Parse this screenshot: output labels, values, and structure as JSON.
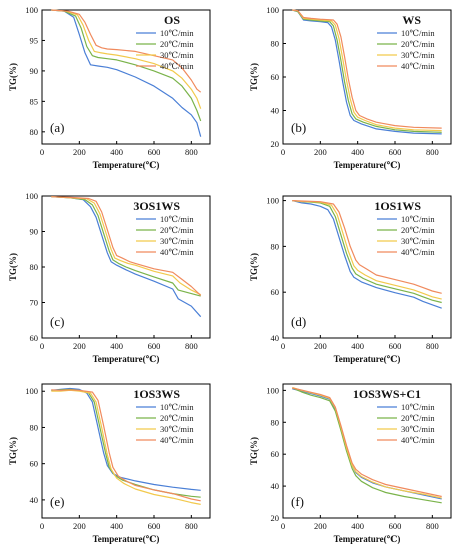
{
  "colors": {
    "10": "#4a7fd6",
    "20": "#7ab34a",
    "30": "#f2c94c",
    "40": "#f08a5d"
  },
  "chart_data": [
    {
      "type": "line",
      "panel": "(a)",
      "title": "OS",
      "xlabel": "Temperature(℃)",
      "ylabel": "TG(%)",
      "xlim": [
        0,
        900
      ],
      "ylim": [
        78,
        100
      ],
      "xticks": [
        0,
        200,
        400,
        600,
        800
      ],
      "yticks": [
        80,
        85,
        90,
        95,
        100
      ],
      "legend_position": "top-right",
      "series": [
        {
          "name": "10℃/min",
          "color_key": "10",
          "x": [
            50,
            120,
            170,
            200,
            230,
            260,
            300,
            350,
            400,
            500,
            600,
            700,
            750,
            800,
            830,
            850
          ],
          "y": [
            100,
            99.8,
            98.8,
            96,
            93,
            91,
            90.8,
            90.6,
            90.2,
            89,
            87.5,
            85.5,
            84,
            82.8,
            81.5,
            79.2
          ]
        },
        {
          "name": "20℃/min",
          "color_key": "20",
          "x": [
            50,
            120,
            180,
            210,
            240,
            270,
            300,
            350,
            400,
            500,
            600,
            700,
            750,
            800,
            830,
            850
          ],
          "y": [
            100,
            99.8,
            99,
            97,
            94,
            92.5,
            92.2,
            92,
            91.8,
            91,
            90,
            88.8,
            87.5,
            85.5,
            83.5,
            81.8
          ]
        },
        {
          "name": "30℃/min",
          "color_key": "30",
          "x": [
            50,
            130,
            190,
            220,
            250,
            280,
            310,
            350,
            400,
            500,
            600,
            700,
            750,
            800,
            830,
            850
          ],
          "y": [
            100,
            99.8,
            99.2,
            97.5,
            95,
            93.2,
            93,
            92.8,
            92.6,
            92,
            91.2,
            90,
            88.8,
            87,
            85.5,
            83.8
          ]
        },
        {
          "name": "40℃/min",
          "color_key": "40",
          "x": [
            50,
            140,
            200,
            230,
            260,
            290,
            320,
            350,
            400,
            500,
            600,
            700,
            750,
            800,
            830,
            850
          ],
          "y": [
            100,
            99.8,
            99.3,
            98,
            96,
            94.2,
            93.8,
            93.6,
            93.5,
            93.2,
            92.5,
            91.8,
            90.5,
            88.5,
            87,
            86.5
          ]
        }
      ]
    },
    {
      "type": "line",
      "panel": "(b)",
      "title": "WS",
      "xlabel": "Temperature(℃)",
      "ylabel": "TG(%)",
      "xlim": [
        0,
        900
      ],
      "ylim": [
        20,
        100
      ],
      "xticks": [
        0,
        200,
        400,
        600,
        800
      ],
      "yticks": [
        20,
        40,
        60,
        80,
        100
      ],
      "legend_position": "top-right",
      "series": [
        {
          "name": "10℃/min",
          "color_key": "10",
          "x": [
            50,
            80,
            110,
            150,
            200,
            240,
            260,
            280,
            300,
            320,
            340,
            360,
            380,
            420,
            500,
            600,
            700,
            850
          ],
          "y": [
            100,
            99,
            94,
            93.5,
            93,
            92.5,
            90,
            82,
            70,
            57,
            45,
            37,
            34,
            32,
            29,
            27.5,
            26.5,
            26
          ]
        },
        {
          "name": "20℃/min",
          "color_key": "20",
          "x": [
            50,
            80,
            110,
            150,
            200,
            250,
            270,
            290,
            310,
            330,
            350,
            370,
            390,
            430,
            500,
            600,
            700,
            850
          ],
          "y": [
            100,
            99,
            94.5,
            94,
            93.5,
            93,
            90.5,
            82,
            70,
            57,
            46,
            38,
            35,
            33,
            30.5,
            28.5,
            27.5,
            27
          ]
        },
        {
          "name": "30℃/min",
          "color_key": "30",
          "x": [
            50,
            80,
            110,
            150,
            200,
            260,
            280,
            300,
            320,
            340,
            360,
            380,
            400,
            440,
            500,
            600,
            700,
            850
          ],
          "y": [
            100,
            99.5,
            95,
            94.5,
            94,
            93.5,
            91,
            83,
            71,
            58,
            47,
            39,
            36,
            34,
            31.5,
            29.5,
            28.5,
            28
          ]
        },
        {
          "name": "40℃/min",
          "color_key": "40",
          "x": [
            50,
            80,
            110,
            150,
            200,
            270,
            290,
            310,
            330,
            350,
            370,
            390,
            410,
            450,
            500,
            600,
            700,
            850
          ],
          "y": [
            100,
            99.5,
            95.5,
            95,
            94.5,
            94,
            91.5,
            84,
            72,
            59,
            48,
            40,
            37,
            35,
            33,
            31,
            30,
            29.5
          ]
        }
      ]
    },
    {
      "type": "line",
      "panel": "(c)",
      "title": "3OS1WS",
      "xlabel": "Temperature(℃)",
      "ylabel": "TG(%)",
      "xlim": [
        0,
        900
      ],
      "ylim": [
        60,
        100
      ],
      "xticks": [
        0,
        200,
        400,
        600,
        800
      ],
      "yticks": [
        60,
        70,
        80,
        90,
        100
      ],
      "legend_position": "top-right",
      "series": [
        {
          "name": "10℃/min",
          "color_key": "10",
          "x": [
            50,
            150,
            220,
            260,
            290,
            320,
            350,
            370,
            400,
            450,
            500,
            600,
            700,
            730,
            800,
            850
          ],
          "y": [
            99.8,
            99.5,
            99,
            97,
            94,
            89,
            84,
            81.5,
            80.5,
            79.2,
            78,
            76,
            73.8,
            71,
            69,
            66
          ]
        },
        {
          "name": "20℃/min",
          "color_key": "20",
          "x": [
            50,
            150,
            230,
            270,
            300,
            330,
            360,
            380,
            410,
            450,
            500,
            600,
            700,
            730,
            800,
            850
          ],
          "y": [
            99.8,
            99.5,
            99,
            97.5,
            94.5,
            89.5,
            84.5,
            82,
            81,
            80,
            79,
            77.2,
            75.5,
            73.5,
            72.5,
            71.8
          ]
        },
        {
          "name": "30℃/min",
          "color_key": "30",
          "x": [
            50,
            150,
            240,
            280,
            310,
            340,
            370,
            390,
            420,
            460,
            500,
            600,
            700,
            740,
            800,
            850
          ],
          "y": [
            99.8,
            99.5,
            99.2,
            98,
            95,
            90,
            85,
            82.5,
            81.8,
            81,
            80.5,
            78.8,
            77.5,
            75.5,
            73.5,
            72.2
          ]
        },
        {
          "name": "40℃/min",
          "color_key": "40",
          "x": [
            50,
            150,
            250,
            290,
            320,
            350,
            380,
            400,
            430,
            470,
            500,
            600,
            700,
            750,
            800,
            850
          ],
          "y": [
            99.8,
            99.6,
            99.3,
            98.5,
            95.5,
            90.5,
            85.5,
            83.2,
            82.5,
            81.5,
            81,
            79.5,
            78.5,
            76.5,
            74.5,
            72
          ]
        }
      ]
    },
    {
      "type": "line",
      "panel": "(d)",
      "title": "1OS1WS",
      "xlabel": "Temperature(℃)",
      "ylabel": "TG(%)",
      "xlim": [
        0,
        900
      ],
      "ylim": [
        40,
        102
      ],
      "xticks": [
        0,
        200,
        400,
        600,
        800
      ],
      "yticks": [
        40,
        60,
        80,
        100
      ],
      "legend_position": "top-right",
      "series": [
        {
          "name": "10℃/min",
          "color_key": "10",
          "x": [
            50,
            100,
            150,
            200,
            240,
            270,
            300,
            330,
            360,
            380,
            420,
            500,
            600,
            700,
            750,
            800,
            850
          ],
          "y": [
            100,
            99,
            98.5,
            97.5,
            96,
            92,
            84,
            76,
            69,
            66.5,
            64.5,
            62,
            59.8,
            57.8,
            56,
            54.5,
            53
          ]
        },
        {
          "name": "20℃/min",
          "color_key": "20",
          "x": [
            50,
            100,
            150,
            200,
            250,
            280,
            310,
            340,
            370,
            390,
            430,
            500,
            600,
            700,
            750,
            800,
            850
          ],
          "y": [
            100,
            99.5,
            99.3,
            99,
            97.5,
            93,
            85,
            77,
            70.5,
            68,
            66,
            63.5,
            61.5,
            59.5,
            58,
            56.5,
            55.5
          ]
        },
        {
          "name": "30℃/min",
          "color_key": "30",
          "x": [
            50,
            100,
            150,
            200,
            260,
            290,
            320,
            350,
            380,
            400,
            440,
            500,
            600,
            700,
            750,
            800,
            850
          ],
          "y": [
            100,
            99.6,
            99.5,
            99.3,
            98,
            94,
            86,
            78,
            71.5,
            69.5,
            67.5,
            65,
            63,
            61,
            59.5,
            58,
            57
          ]
        },
        {
          "name": "40℃/min",
          "color_key": "40",
          "x": [
            50,
            100,
            150,
            200,
            270,
            300,
            330,
            360,
            390,
            410,
            450,
            500,
            600,
            700,
            750,
            800,
            850
          ],
          "y": [
            100,
            99.8,
            99.7,
            99.5,
            98.5,
            95,
            88,
            80,
            74,
            72,
            70,
            67.5,
            65.5,
            63.5,
            62,
            60.5,
            59.5
          ]
        }
      ]
    },
    {
      "type": "line",
      "panel": "(e)",
      "title": "1OS3WS",
      "xlabel": "Temperature(℃)",
      "ylabel": "TG(%)",
      "xlim": [
        0,
        900
      ],
      "ylim": [
        30,
        104
      ],
      "xticks": [
        0,
        200,
        400,
        600,
        800
      ],
      "yticks": [
        40,
        60,
        80,
        100
      ],
      "legend_position": "top-right",
      "series": [
        {
          "name": "10℃/min",
          "color_key": "10",
          "x": [
            50,
            100,
            150,
            200,
            240,
            270,
            300,
            330,
            350,
            380,
            420,
            500,
            600,
            700,
            800,
            850
          ],
          "y": [
            100.5,
            101,
            101.5,
            101,
            99,
            94,
            80,
            66,
            59,
            54.5,
            52.5,
            50.5,
            48.5,
            47,
            45.8,
            45.3
          ]
        },
        {
          "name": "20℃/min",
          "color_key": "20",
          "x": [
            50,
            100,
            150,
            200,
            250,
            280,
            310,
            340,
            360,
            390,
            430,
            500,
            600,
            700,
            800,
            850
          ],
          "y": [
            100.5,
            100.8,
            101,
            100.5,
            99,
            94,
            80,
            66,
            58,
            53.5,
            51,
            48.5,
            45.5,
            43.5,
            42,
            41.5
          ]
        },
        {
          "name": "30℃/min",
          "color_key": "30",
          "x": [
            50,
            100,
            150,
            200,
            260,
            290,
            320,
            350,
            370,
            400,
            440,
            500,
            600,
            700,
            800,
            850
          ],
          "y": [
            100,
            100,
            100.5,
            100,
            99,
            94,
            80,
            65,
            57,
            52,
            49,
            46,
            43,
            41,
            38.5,
            37.5
          ]
        },
        {
          "name": "40℃/min",
          "color_key": "40",
          "x": [
            50,
            100,
            150,
            200,
            270,
            300,
            330,
            360,
            380,
            410,
            450,
            500,
            600,
            700,
            800,
            850
          ],
          "y": [
            100.8,
            100.5,
            100.8,
            100.5,
            99.5,
            95,
            81,
            66,
            58,
            53,
            50.5,
            48,
            45.5,
            43.5,
            40.5,
            39.5
          ]
        }
      ]
    },
    {
      "type": "line",
      "panel": "(f)",
      "title": "1OS3WS+C1",
      "xlabel": "Temperature(℃)",
      "ylabel": "TG(%)",
      "xlim": [
        0,
        900
      ],
      "ylim": [
        20,
        104
      ],
      "xticks": [
        0,
        200,
        400,
        600,
        800
      ],
      "yticks": [
        20,
        40,
        60,
        80,
        100
      ],
      "legend_position": "top-right",
      "series": [
        {
          "name": "10℃/min",
          "color_key": "10",
          "x": [
            50,
            100,
            150,
            200,
            250,
            280,
            310,
            340,
            370,
            390,
            420,
            480,
            550,
            650,
            750,
            850
          ],
          "y": [
            101,
            99.5,
            98,
            96.5,
            94.5,
            88,
            76,
            64,
            53,
            48.5,
            45.5,
            42,
            39.5,
            37,
            34.5,
            32
          ]
        },
        {
          "name": "20℃/min",
          "color_key": "20",
          "x": [
            50,
            100,
            150,
            200,
            250,
            280,
            310,
            340,
            370,
            390,
            420,
            480,
            550,
            650,
            750,
            850
          ],
          "y": [
            101.5,
            99,
            97,
            95.5,
            93.5,
            87,
            75,
            62,
            51,
            46.5,
            43,
            39,
            36,
            33.5,
            31.5,
            29.5
          ]
        },
        {
          "name": "30℃/min",
          "color_key": "30",
          "x": [
            50,
            100,
            150,
            200,
            250,
            280,
            310,
            340,
            370,
            390,
            420,
            480,
            550,
            650,
            750,
            850
          ],
          "y": [
            101.8,
            100,
            98.5,
            97,
            95,
            89,
            77,
            64,
            53,
            49,
            46,
            42.5,
            39.5,
            37,
            35,
            32.5
          ]
        },
        {
          "name": "40℃/min",
          "color_key": "40",
          "x": [
            50,
            100,
            150,
            200,
            250,
            280,
            310,
            340,
            370,
            390,
            420,
            480,
            550,
            650,
            750,
            850
          ],
          "y": [
            101.5,
            100.2,
            98.8,
            97.5,
            95.5,
            89.5,
            78,
            65.5,
            54.5,
            50.5,
            47.5,
            44,
            41,
            38.5,
            36,
            33.5
          ]
        }
      ]
    }
  ]
}
